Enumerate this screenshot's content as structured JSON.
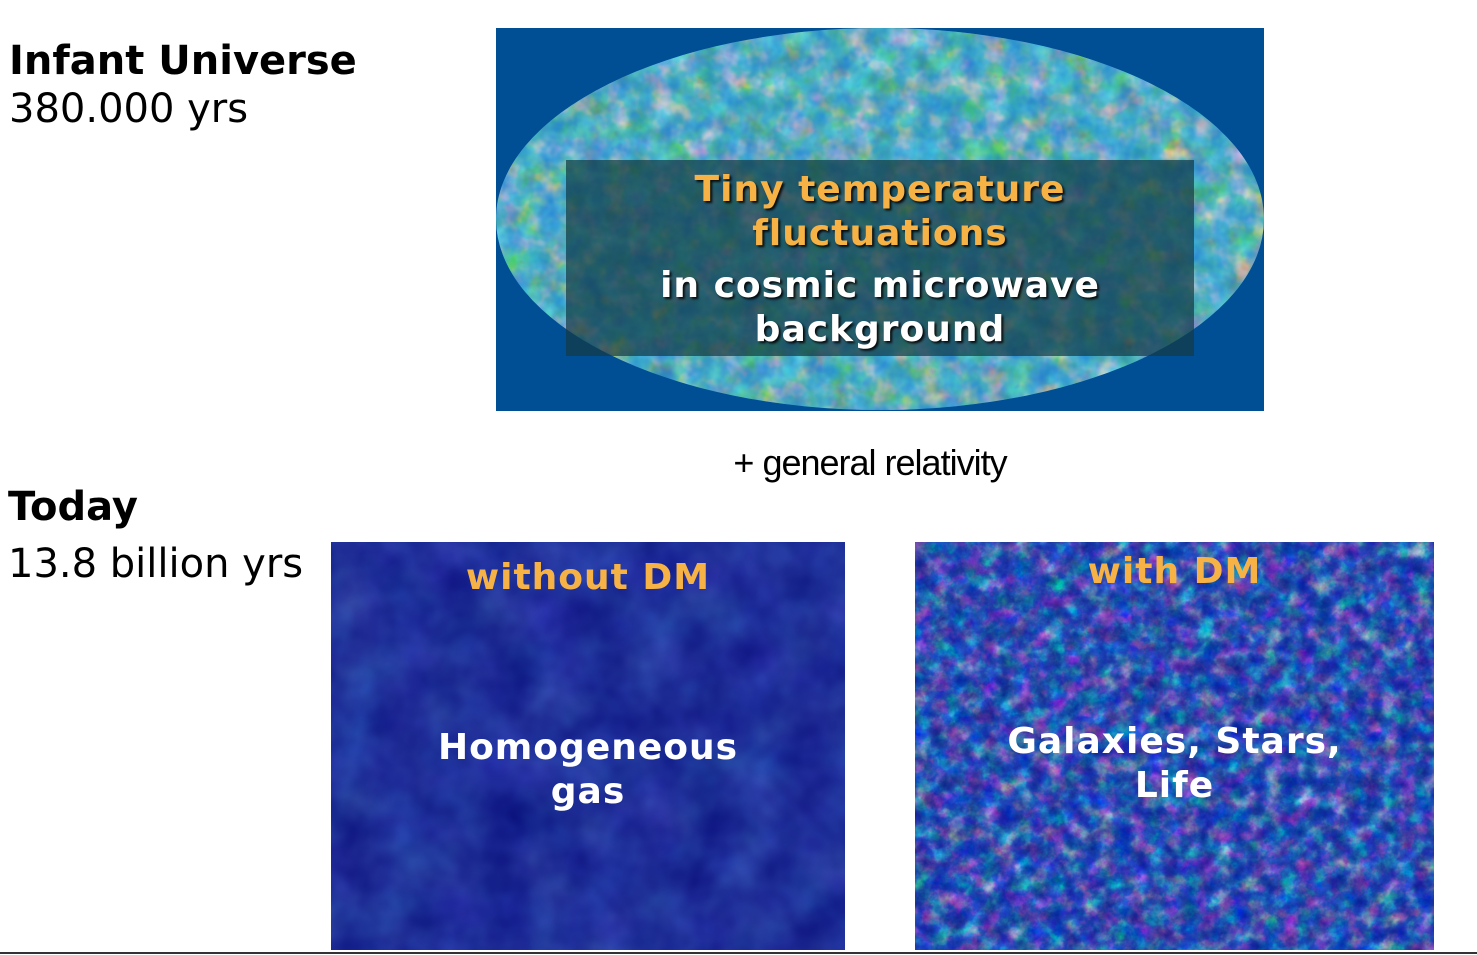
{
  "infant": {
    "title": "Infant Universe",
    "time": "380.000 yrs"
  },
  "today": {
    "title": "Today",
    "time": "13.8 billion yrs"
  },
  "cmb": {
    "headline_line1": "Tiny temperature",
    "headline_line2": "fluctuations",
    "subline_line1": "in cosmic microwave",
    "subline_line2": "background",
    "colors": {
      "background": "#004e93",
      "headline": "#f7b245",
      "subline": "#ffffff"
    }
  },
  "relativity_label": "+ general relativity",
  "panels": {
    "without_dm": {
      "heading": "without DM",
      "body_line1": "Homogeneous",
      "body_line2": "gas"
    },
    "with_dm": {
      "heading": "with DM",
      "body_line1": "Galaxies, Stars,",
      "body_line2": "Life"
    }
  }
}
